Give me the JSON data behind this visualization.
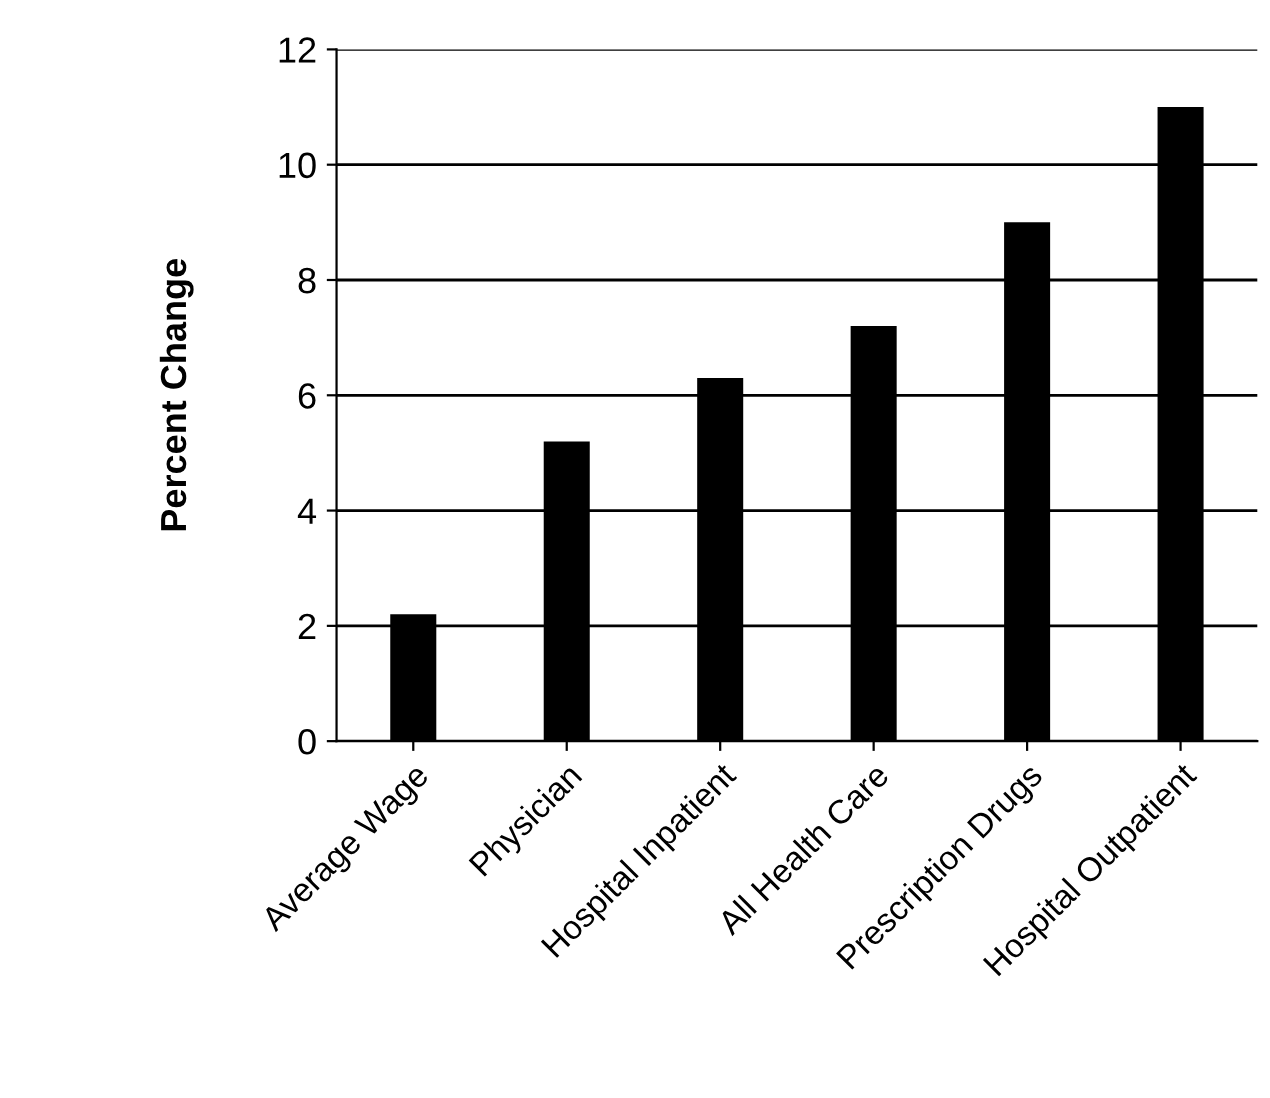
{
  "chart_data": {
    "type": "bar",
    "ylabel": "Percent Change",
    "categories": [
      "Average Wage",
      "Physician",
      "Hospital Inpatient",
      "All Health Care",
      "Prescription Drugs",
      "Hospital Outpatient"
    ],
    "values": [
      2.2,
      5.2,
      6.3,
      7.2,
      9.0,
      11.0
    ],
    "color": "#000000",
    "ylim": [
      0,
      12
    ],
    "yticks": [
      0,
      2,
      4,
      6,
      8,
      10,
      12
    ],
    "grid": "y"
  }
}
